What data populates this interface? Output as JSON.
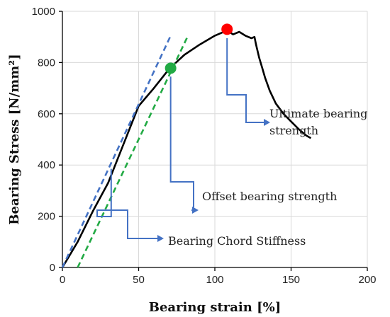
{
  "chart_data": {
    "type": "line",
    "xlabel": "Bearing strain [%]",
    "ylabel": "Bearing Stress [N/mm²]",
    "xlim": [
      0,
      200
    ],
    "ylim": [
      0,
      1000
    ],
    "x_ticks": [
      "0",
      "50",
      "100",
      "150",
      "200"
    ],
    "y_ticks": [
      "0",
      "200",
      "400",
      "600",
      "800",
      "1000"
    ],
    "grid": true,
    "series": [
      {
        "name": "",
        "style": "solid",
        "color": "#000000",
        "x": [
          0,
          10,
          20,
          30,
          40,
          50,
          60,
          70,
          80,
          90,
          100,
          108,
          112,
          116,
          120,
          124,
          126,
          127,
          129,
          131,
          133,
          136,
          140,
          145,
          150,
          155,
          160,
          163
        ],
        "y": [
          0,
          100,
          220,
          330,
          480,
          630,
          700,
          775,
          830,
          870,
          905,
          925,
          910,
          920,
          905,
          895,
          900,
          870,
          820,
          780,
          740,
          690,
          640,
          600,
          570,
          540,
          515,
          505
        ]
      },
      {
        "name": "",
        "style": "dashed",
        "color": "#4472c4",
        "x": [
          0,
          71
        ],
        "y": [
          0,
          905
        ]
      },
      {
        "name": "",
        "style": "dashed",
        "color": "#22aa44",
        "x": [
          10,
          82
        ],
        "y": [
          0,
          900
        ]
      }
    ],
    "points": [
      {
        "label": "Ultimate bearing strength",
        "x": 108,
        "y": 930,
        "color": "#ff0000"
      },
      {
        "label": "Offset bearing strength",
        "x": 71,
        "y": 778,
        "color": "#22aa44"
      }
    ],
    "annotations": [
      {
        "text_lines": [
          "Ultimate bearing",
          "strength"
        ],
        "target_x": 108,
        "target_y": 895
      },
      {
        "text_lines": [
          "Offset bearing strength"
        ],
        "target_x": 71,
        "target_y": 745
      },
      {
        "text_lines": [
          "Bearing Chord Stiffness"
        ],
        "target_x": 32,
        "target_y": 385
      }
    ]
  }
}
